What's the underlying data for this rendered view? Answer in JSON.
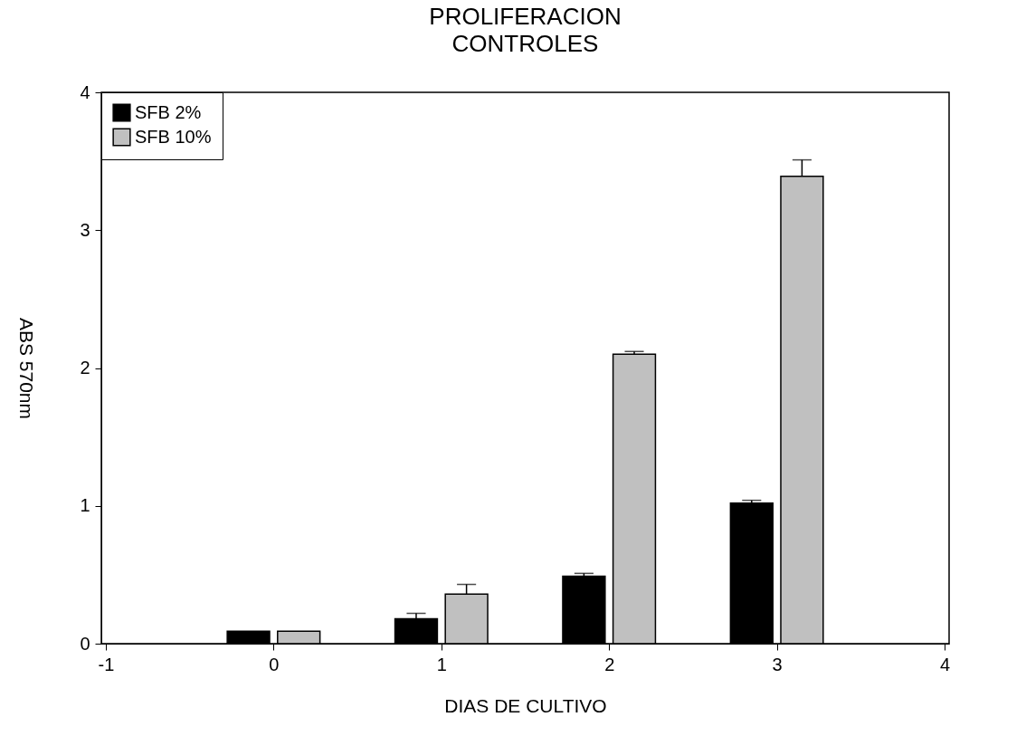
{
  "chart_data": {
    "type": "bar",
    "title": "PROLIFERACION\nCONTROLES",
    "xlabel": "DIAS DE CULTIVO",
    "ylabel": "ABS 570nm",
    "series": [
      {
        "name": "SFB 2%",
        "color": "#000000",
        "x": [
          -0.15,
          0.85,
          1.85,
          2.85
        ],
        "values": [
          0.09,
          0.18,
          0.49,
          1.02
        ],
        "errors": [
          null,
          0.04,
          0.02,
          0.02
        ]
      },
      {
        "name": "SFB 10%",
        "color": "#c0c0c0",
        "x": [
          0.15,
          1.15,
          2.15,
          3.15
        ],
        "values": [
          0.09,
          0.36,
          2.1,
          3.39
        ],
        "errors": [
          null,
          0.07,
          0.02,
          0.12
        ]
      }
    ],
    "xlim": [
      -1,
      4
    ],
    "xticks": [
      -1,
      0,
      1,
      2,
      3,
      4
    ],
    "ylim": [
      0,
      4
    ],
    "yticks": [
      0,
      1,
      2,
      3,
      4
    ],
    "grid": false,
    "legend": "top left"
  }
}
